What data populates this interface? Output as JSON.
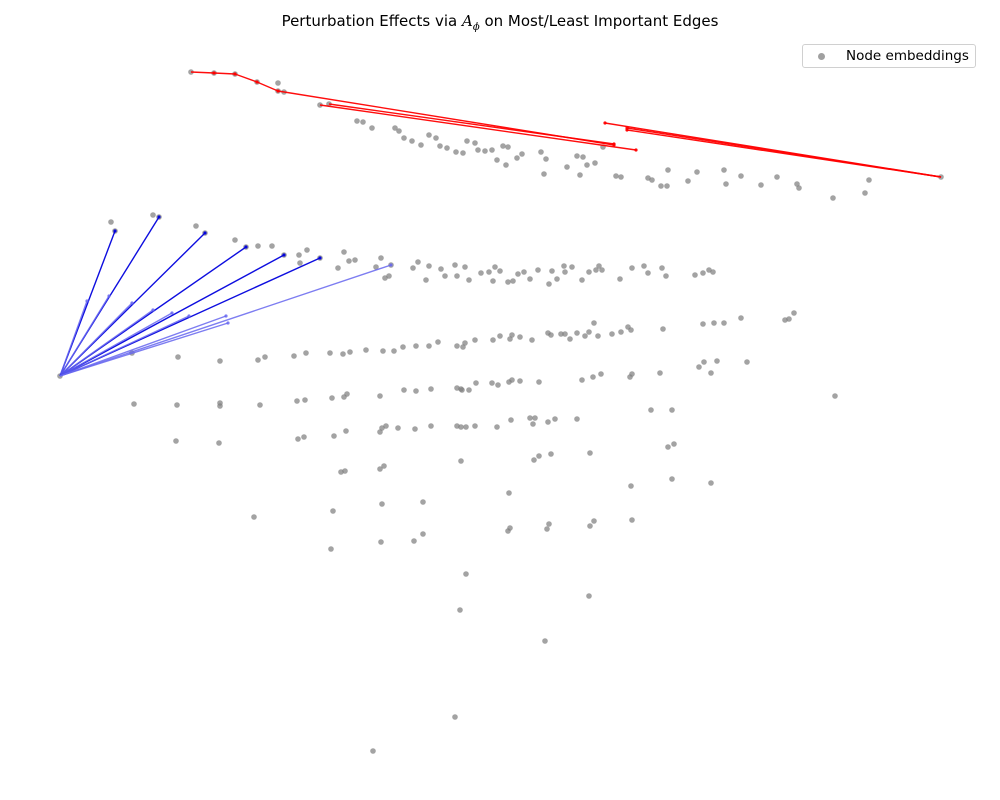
{
  "chart_data": {
    "type": "scatter",
    "title": {
      "prefix": "Perturbation Effects via ",
      "math_base": "A",
      "math_sub": "ϕ",
      "suffix": " on Most/Least Important Edges"
    },
    "axes_visible": false,
    "grid": false,
    "legend": {
      "position": "top-right",
      "entries": [
        "Node embeddings"
      ]
    },
    "colors": {
      "points": "#808080",
      "most_important": "#ff0000",
      "least_important": "#0000dd",
      "least_important_faint": "#6666ee"
    },
    "series": [
      {
        "name": "Node embeddings",
        "points": [
          [
            191,
            72
          ],
          [
            214,
            73
          ],
          [
            235,
            74
          ],
          [
            257,
            82
          ],
          [
            278,
            83
          ],
          [
            278,
            91
          ],
          [
            284,
            92
          ],
          [
            320,
            105
          ],
          [
            329,
            104
          ],
          [
            357,
            121
          ],
          [
            363,
            122
          ],
          [
            372,
            128
          ],
          [
            395,
            128
          ],
          [
            399,
            131
          ],
          [
            404,
            138
          ],
          [
            412,
            141
          ],
          [
            421,
            145
          ],
          [
            429,
            135
          ],
          [
            436,
            138
          ],
          [
            440,
            146
          ],
          [
            447,
            148
          ],
          [
            456,
            152
          ],
          [
            463,
            153
          ],
          [
            467,
            141
          ],
          [
            475,
            143
          ],
          [
            478,
            150
          ],
          [
            485,
            151
          ],
          [
            492,
            150
          ],
          [
            497,
            160
          ],
          [
            503,
            146
          ],
          [
            506,
            165
          ],
          [
            508,
            147
          ],
          [
            517,
            158
          ],
          [
            522,
            154
          ],
          [
            541,
            152
          ],
          [
            544,
            174
          ],
          [
            546,
            159
          ],
          [
            567,
            167
          ],
          [
            577,
            156
          ],
          [
            583,
            157
          ],
          [
            580,
            175
          ],
          [
            587,
            165
          ],
          [
            595,
            163
          ],
          [
            603,
            147
          ],
          [
            616,
            176
          ],
          [
            621,
            177
          ],
          [
            648,
            178
          ],
          [
            652,
            180
          ],
          [
            661,
            186
          ],
          [
            667,
            186
          ],
          [
            668,
            170
          ],
          [
            688,
            181
          ],
          [
            697,
            172
          ],
          [
            724,
            170
          ],
          [
            726,
            184
          ],
          [
            741,
            176
          ],
          [
            761,
            185
          ],
          [
            777,
            177
          ],
          [
            797,
            184
          ],
          [
            799,
            188
          ],
          [
            833,
            198
          ],
          [
            865,
            193
          ],
          [
            869,
            180
          ],
          [
            941,
            177
          ],
          [
            111,
            222
          ],
          [
            115,
            231
          ],
          [
            153,
            215
          ],
          [
            159,
            217
          ],
          [
            196,
            226
          ],
          [
            205,
            233
          ],
          [
            235,
            240
          ],
          [
            246,
            247
          ],
          [
            258,
            246
          ],
          [
            272,
            246
          ],
          [
            284,
            255
          ],
          [
            299,
            255
          ],
          [
            300,
            263
          ],
          [
            307,
            250
          ],
          [
            320,
            258
          ],
          [
            338,
            268
          ],
          [
            344,
            252
          ],
          [
            349,
            261
          ],
          [
            355,
            260
          ],
          [
            376,
            267
          ],
          [
            381,
            258
          ],
          [
            385,
            278
          ],
          [
            389,
            276
          ],
          [
            391,
            265
          ],
          [
            413,
            268
          ],
          [
            418,
            262
          ],
          [
            426,
            280
          ],
          [
            429,
            266
          ],
          [
            441,
            269
          ],
          [
            445,
            276
          ],
          [
            455,
            265
          ],
          [
            457,
            276
          ],
          [
            465,
            267
          ],
          [
            469,
            280
          ],
          [
            481,
            273
          ],
          [
            489,
            272
          ],
          [
            493,
            281
          ],
          [
            495,
            267
          ],
          [
            500,
            271
          ],
          [
            508,
            282
          ],
          [
            513,
            281
          ],
          [
            518,
            274
          ],
          [
            524,
            272
          ],
          [
            530,
            279
          ],
          [
            538,
            270
          ],
          [
            549,
            284
          ],
          [
            552,
            271
          ],
          [
            557,
            279
          ],
          [
            564,
            266
          ],
          [
            565,
            272
          ],
          [
            572,
            267
          ],
          [
            582,
            280
          ],
          [
            589,
            272
          ],
          [
            596,
            270
          ],
          [
            599,
            266
          ],
          [
            602,
            270
          ],
          [
            620,
            279
          ],
          [
            632,
            268
          ],
          [
            644,
            266
          ],
          [
            648,
            273
          ],
          [
            662,
            268
          ],
          [
            666,
            276
          ],
          [
            695,
            275
          ],
          [
            703,
            273
          ],
          [
            709,
            270
          ],
          [
            713,
            272
          ],
          [
            60,
            376
          ],
          [
            132,
            353
          ],
          [
            178,
            357
          ],
          [
            220,
            361
          ],
          [
            258,
            360
          ],
          [
            265,
            357
          ],
          [
            294,
            356
          ],
          [
            306,
            353
          ],
          [
            330,
            353
          ],
          [
            343,
            354
          ],
          [
            350,
            352
          ],
          [
            366,
            350
          ],
          [
            383,
            351
          ],
          [
            394,
            351
          ],
          [
            403,
            347
          ],
          [
            416,
            346
          ],
          [
            429,
            346
          ],
          [
            438,
            342
          ],
          [
            457,
            346
          ],
          [
            463,
            347
          ],
          [
            465,
            343
          ],
          [
            475,
            340
          ],
          [
            493,
            340
          ],
          [
            500,
            336
          ],
          [
            510,
            339
          ],
          [
            512,
            335
          ],
          [
            520,
            337
          ],
          [
            532,
            340
          ],
          [
            548,
            333
          ],
          [
            551,
            335
          ],
          [
            561,
            334
          ],
          [
            565,
            334
          ],
          [
            570,
            339
          ],
          [
            577,
            333
          ],
          [
            585,
            336
          ],
          [
            589,
            332
          ],
          [
            594,
            323
          ],
          [
            598,
            336
          ],
          [
            612,
            334
          ],
          [
            621,
            332
          ],
          [
            628,
            327
          ],
          [
            631,
            330
          ],
          [
            663,
            329
          ],
          [
            703,
            324
          ],
          [
            714,
            323
          ],
          [
            724,
            323
          ],
          [
            741,
            318
          ],
          [
            785,
            320
          ],
          [
            789,
            319
          ],
          [
            794,
            313
          ],
          [
            134,
            404
          ],
          [
            177,
            405
          ],
          [
            220,
            403
          ],
          [
            220,
            406
          ],
          [
            260,
            405
          ],
          [
            297,
            401
          ],
          [
            305,
            400
          ],
          [
            332,
            398
          ],
          [
            344,
            397
          ],
          [
            347,
            394
          ],
          [
            380,
            396
          ],
          [
            404,
            390
          ],
          [
            416,
            391
          ],
          [
            431,
            389
          ],
          [
            457,
            388
          ],
          [
            461,
            389
          ],
          [
            462,
            390
          ],
          [
            469,
            390
          ],
          [
            476,
            383
          ],
          [
            492,
            383
          ],
          [
            498,
            385
          ],
          [
            509,
            382
          ],
          [
            512,
            380
          ],
          [
            520,
            381
          ],
          [
            539,
            382
          ],
          [
            582,
            380
          ],
          [
            593,
            377
          ],
          [
            601,
            374
          ],
          [
            630,
            377
          ],
          [
            632,
            374
          ],
          [
            660,
            373
          ],
          [
            699,
            367
          ],
          [
            704,
            362
          ],
          [
            711,
            373
          ],
          [
            717,
            361
          ],
          [
            747,
            362
          ],
          [
            835,
            396
          ],
          [
            176,
            441
          ],
          [
            219,
            443
          ],
          [
            298,
            439
          ],
          [
            304,
            437
          ],
          [
            334,
            436
          ],
          [
            346,
            431
          ],
          [
            380,
            432
          ],
          [
            382,
            428
          ],
          [
            386,
            426
          ],
          [
            398,
            428
          ],
          [
            415,
            429
          ],
          [
            431,
            426
          ],
          [
            457,
            426
          ],
          [
            461,
            427
          ],
          [
            466,
            427
          ],
          [
            475,
            426
          ],
          [
            497,
            427
          ],
          [
            511,
            420
          ],
          [
            530,
            418
          ],
          [
            533,
            424
          ],
          [
            535,
            418
          ],
          [
            548,
            422
          ],
          [
            555,
            419
          ],
          [
            577,
            419
          ],
          [
            651,
            410
          ],
          [
            672,
            410
          ],
          [
            668,
            447
          ],
          [
            674,
            444
          ],
          [
            341,
            472
          ],
          [
            345,
            471
          ],
          [
            380,
            469
          ],
          [
            384,
            466
          ],
          [
            461,
            461
          ],
          [
            534,
            460
          ],
          [
            539,
            456
          ],
          [
            551,
            454
          ],
          [
            590,
            453
          ],
          [
            631,
            486
          ],
          [
            672,
            479
          ],
          [
            711,
            483
          ],
          [
            254,
            517
          ],
          [
            333,
            511
          ],
          [
            382,
            504
          ],
          [
            423,
            502
          ],
          [
            509,
            493
          ],
          [
            508,
            531
          ],
          [
            510,
            528
          ],
          [
            547,
            529
          ],
          [
            549,
            524
          ],
          [
            590,
            526
          ],
          [
            594,
            521
          ],
          [
            632,
            520
          ],
          [
            331,
            549
          ],
          [
            381,
            542
          ],
          [
            414,
            541
          ],
          [
            423,
            534
          ],
          [
            466,
            574
          ],
          [
            460,
            610
          ],
          [
            589,
            596
          ],
          [
            545,
            641
          ],
          [
            455,
            717
          ],
          [
            373,
            751
          ]
        ]
      }
    ],
    "most_important_edges": [
      [
        [
          191,
          72
        ],
        [
          214,
          73
        ]
      ],
      [
        [
          214,
          73
        ],
        [
          235,
          74
        ]
      ],
      [
        [
          235,
          74
        ],
        [
          257,
          82
        ]
      ],
      [
        [
          257,
          82
        ],
        [
          278,
          91
        ]
      ],
      [
        [
          278,
          91
        ],
        [
          614,
          145
        ]
      ],
      [
        [
          320,
          105
        ],
        [
          636,
          150
        ]
      ],
      [
        [
          329,
          104
        ],
        [
          614,
          144
        ]
      ],
      [
        [
          941,
          177
        ],
        [
          605,
          123
        ]
      ],
      [
        [
          941,
          177
        ],
        [
          627,
          130
        ]
      ],
      [
        [
          941,
          177
        ],
        [
          627,
          128
        ]
      ]
    ],
    "least_important_edges": [
      [
        [
          60,
          376
        ],
        [
          115,
          231
        ]
      ],
      [
        [
          60,
          376
        ],
        [
          87,
          301
        ]
      ],
      [
        [
          60,
          376
        ],
        [
          159,
          217
        ]
      ],
      [
        [
          60,
          376
        ],
        [
          109,
          296
        ]
      ],
      [
        [
          60,
          376
        ],
        [
          205,
          233
        ]
      ],
      [
        [
          60,
          376
        ],
        [
          132,
          303
        ]
      ],
      [
        [
          60,
          376
        ],
        [
          246,
          247
        ]
      ],
      [
        [
          60,
          376
        ],
        [
          153,
          310
        ]
      ],
      [
        [
          60,
          376
        ],
        [
          284,
          255
        ]
      ],
      [
        [
          60,
          376
        ],
        [
          172,
          313
        ]
      ],
      [
        [
          60,
          376
        ],
        [
          320,
          258
        ]
      ],
      [
        [
          60,
          376
        ],
        [
          189,
          316
        ]
      ],
      [
        [
          60,
          376
        ],
        [
          391,
          265
        ]
      ],
      [
        [
          60,
          376
        ],
        [
          226,
          316
        ]
      ],
      [
        [
          60,
          376
        ],
        [
          228,
          323
        ]
      ]
    ]
  }
}
